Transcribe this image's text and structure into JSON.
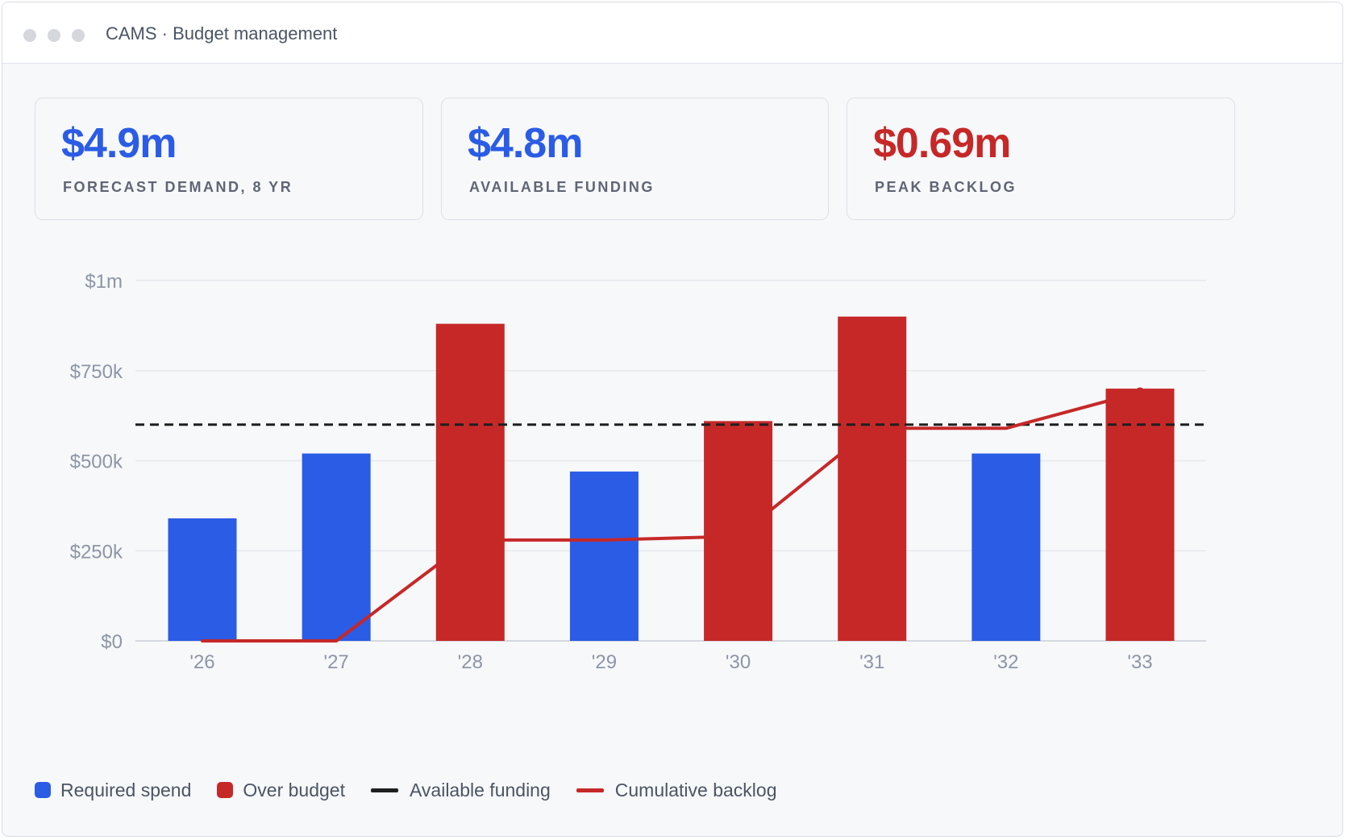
{
  "window": {
    "title": "CAMS · Budget management"
  },
  "kpis": [
    {
      "value": "$4.9m",
      "label": "FORECAST DEMAND, 8 YR",
      "color": "#2b5ce6"
    },
    {
      "value": "$4.8m",
      "label": "AVAILABLE FUNDING",
      "color": "#2b5ce6"
    },
    {
      "value": "$0.69m",
      "label": "PEAK BACKLOG",
      "color": "#c62828"
    }
  ],
  "chart_data": {
    "type": "bar",
    "categories": [
      "'26",
      "'27",
      "'28",
      "'29",
      "'30",
      "'31",
      "'32",
      "'33"
    ],
    "values": [
      340000,
      520000,
      880000,
      470000,
      610000,
      900000,
      520000,
      700000
    ],
    "over_budget": [
      false,
      false,
      true,
      false,
      true,
      true,
      false,
      true
    ],
    "available_funding": 600000,
    "cumulative_backlog": [
      0,
      0,
      280000,
      280000,
      290000,
      590000,
      590000,
      690000
    ],
    "ylim": [
      0,
      1000000
    ],
    "yticks": [
      0,
      250000,
      500000,
      750000,
      1000000
    ],
    "ytick_labels": [
      "$0",
      "$250k",
      "$500k",
      "$750k",
      "$1m"
    ],
    "grid": true,
    "legend_position": "bottom-left",
    "colors": {
      "required": "#2b5ce6",
      "over": "#c62828",
      "funding": "#1f1f1f",
      "backlog": "#c62828"
    }
  },
  "legend": [
    {
      "label": "Required spend",
      "kind": "square",
      "color": "#2b5ce6"
    },
    {
      "label": "Over budget",
      "kind": "square",
      "color": "#c62828"
    },
    {
      "label": "Available funding",
      "kind": "line",
      "color": "#1f1f1f"
    },
    {
      "label": "Cumulative backlog",
      "kind": "line",
      "color": "#c62828"
    }
  ]
}
